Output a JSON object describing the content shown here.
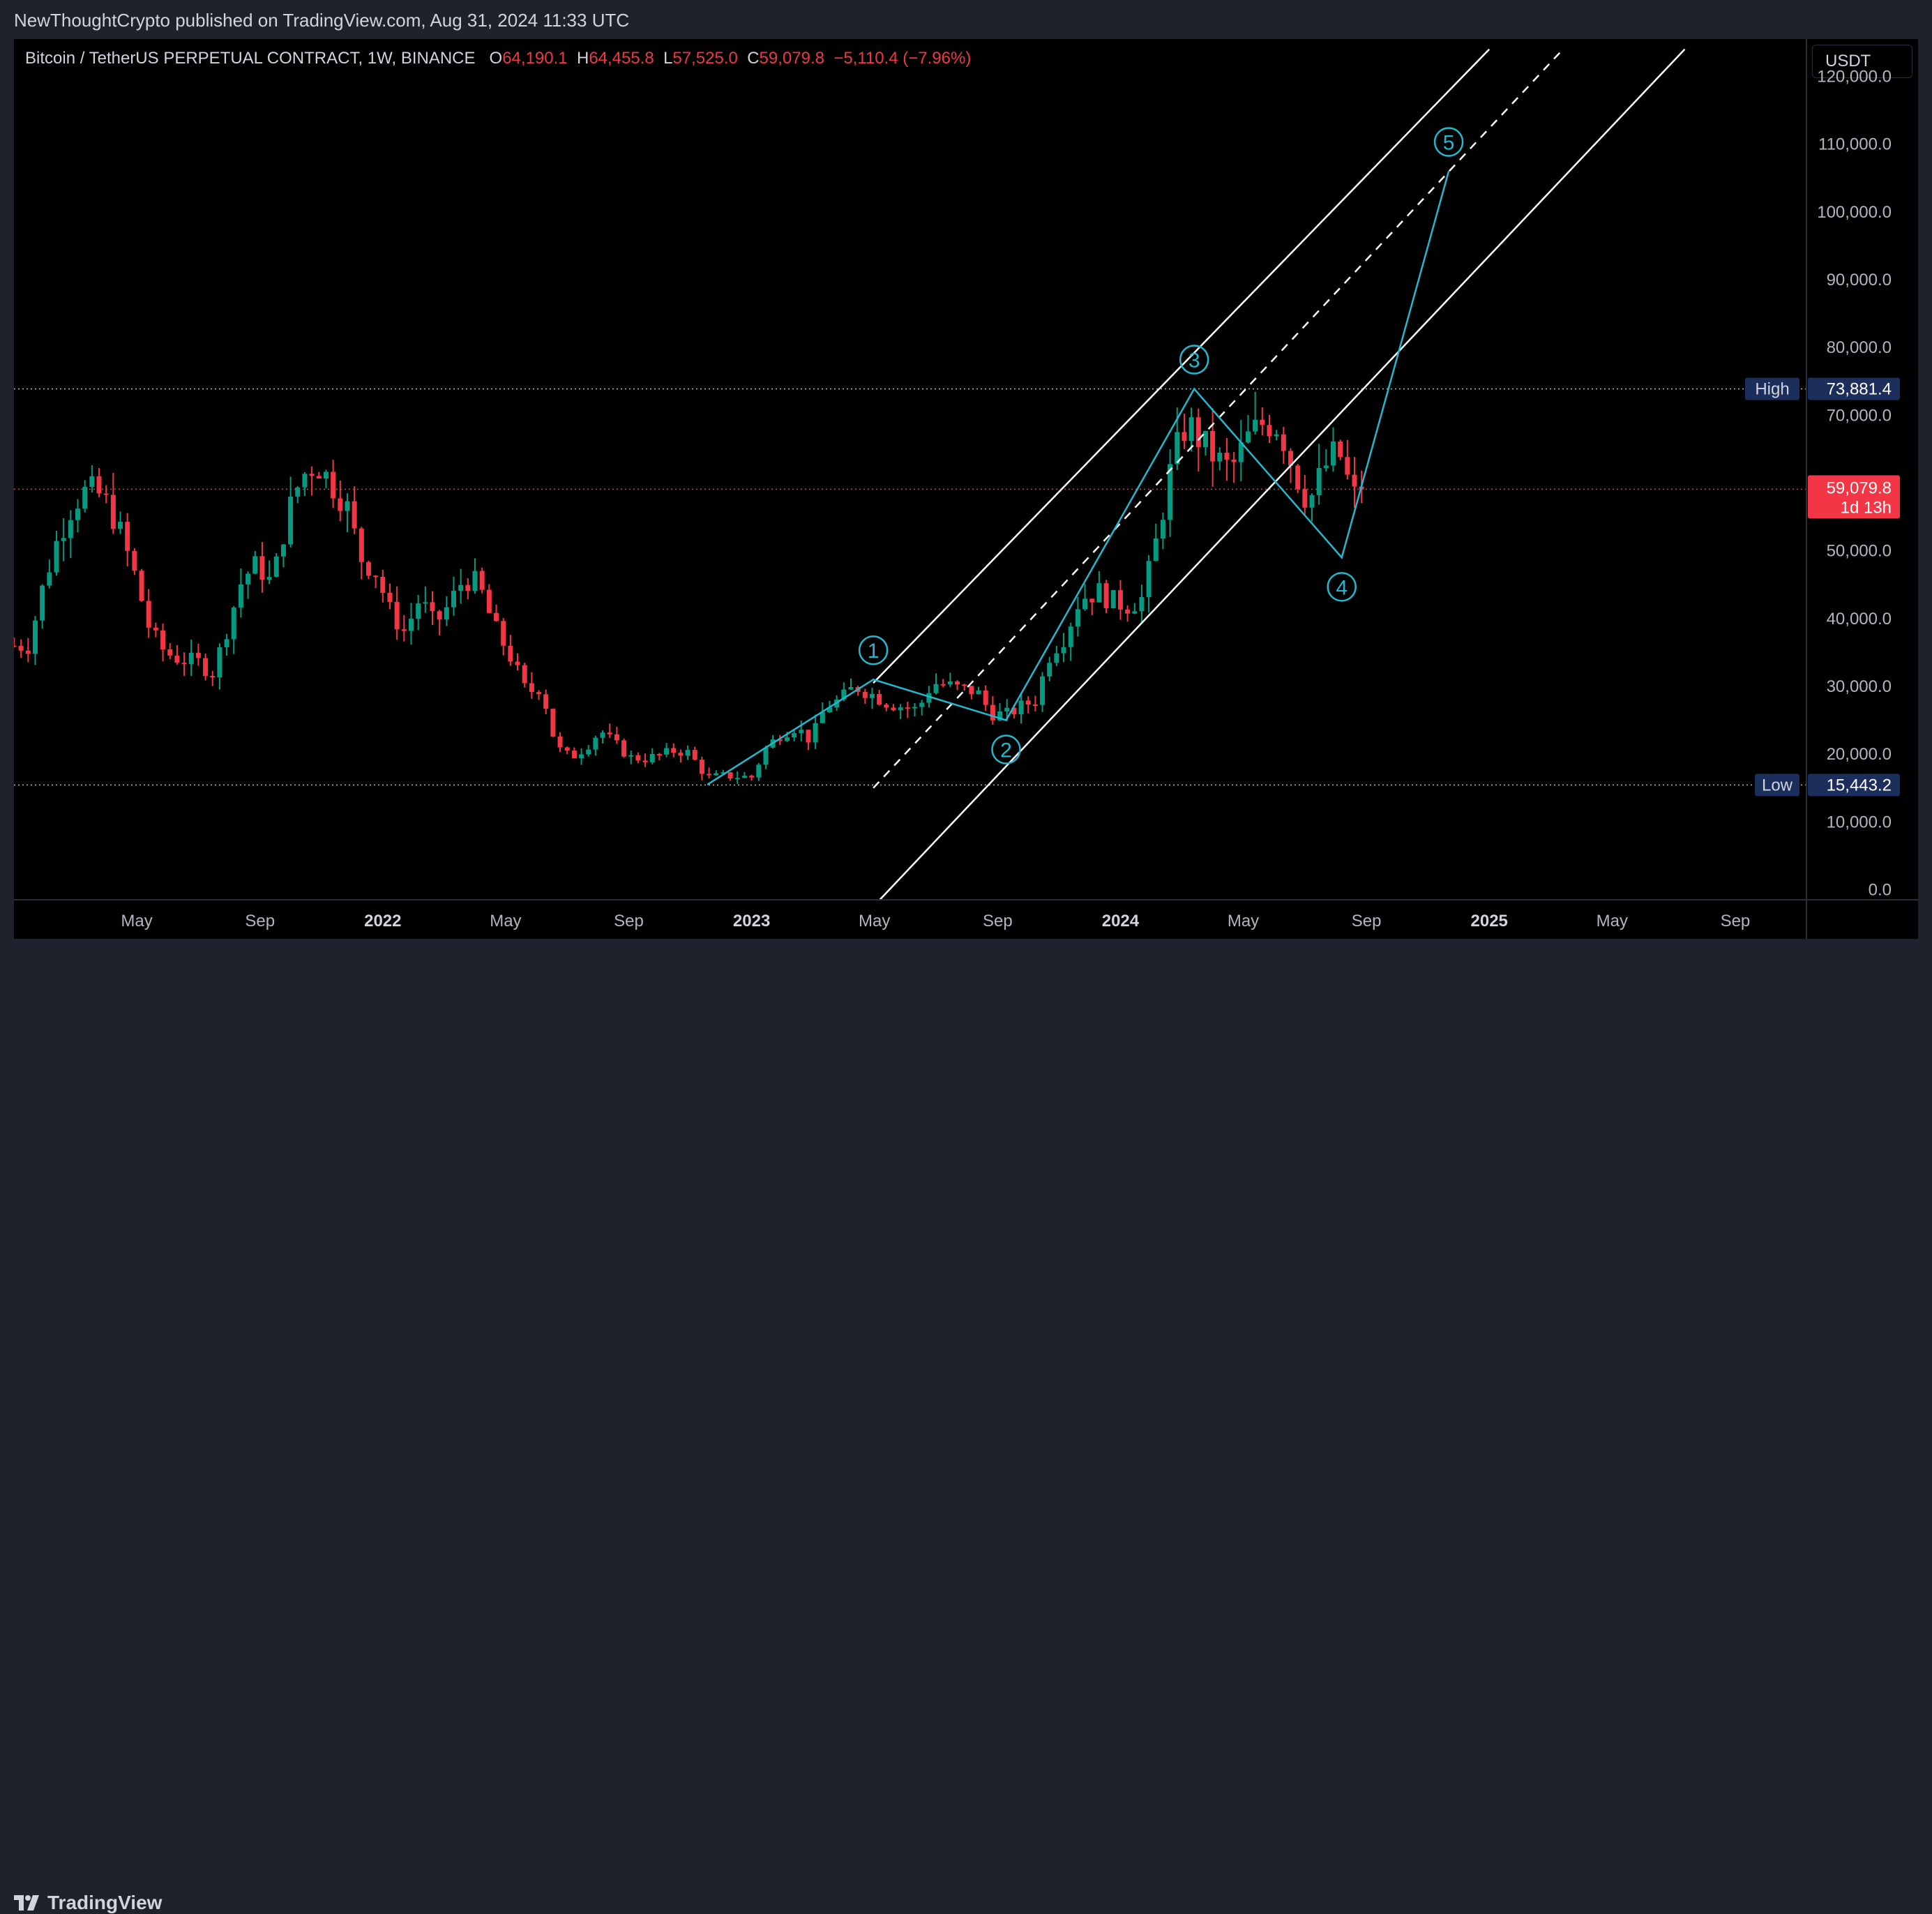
{
  "publish_line": "NewThoughtCrypto published on TradingView.com, Aug 31, 2024 11:33 UTC",
  "legend": {
    "symbol": "Bitcoin / TetherUS PERPETUAL CONTRACT, 1W, BINANCE",
    "o_key": "O",
    "o": "64,190.1",
    "h_key": "H",
    "h": "64,455.8",
    "l_key": "L",
    "l": "57,525.0",
    "c_key": "C",
    "c": "59,079.8",
    "change": "−5,110.4 (−7.96%)"
  },
  "currency": "USDT",
  "brand": "TradingView",
  "colors": {
    "up": "#089981",
    "down": "#f23645",
    "wave": "#22b8cf",
    "channel": "#ffffff",
    "badge": "#1c2e5c"
  },
  "markers": {
    "high": {
      "label": "High",
      "value": "73,881.4",
      "price": 73881.4
    },
    "low": {
      "label": "Low",
      "value": "15,443.2",
      "price": 15443.2
    },
    "last": {
      "value": "59,079.8",
      "countdown": "1d 13h",
      "price": 59079.8
    }
  },
  "chart_data": {
    "type": "candlestick",
    "timeframe": "1W",
    "y_axis": {
      "ticks": [
        "0.0",
        "10,000.0",
        "20,000.0",
        "30,000.0",
        "40,000.0",
        "50,000.0",
        "60,000.0",
        "70,000.0",
        "80,000.0",
        "90,000.0",
        "100,000.0",
        "110,000.0",
        "120,000.0"
      ],
      "range": [
        -1500,
        125500
      ]
    },
    "x_axis": {
      "ticks": [
        {
          "label": "May",
          "t": 2021.333,
          "year": false
        },
        {
          "label": "Sep",
          "t": 2021.667,
          "year": false
        },
        {
          "label": "2022",
          "t": 2022.0,
          "year": true
        },
        {
          "label": "May",
          "t": 2022.333,
          "year": false
        },
        {
          "label": "Sep",
          "t": 2022.667,
          "year": false
        },
        {
          "label": "2023",
          "t": 2023.0,
          "year": true
        },
        {
          "label": "May",
          "t": 2023.333,
          "year": false
        },
        {
          "label": "Sep",
          "t": 2023.667,
          "year": false
        },
        {
          "label": "2024",
          "t": 2024.0,
          "year": true
        },
        {
          "label": "May",
          "t": 2024.333,
          "year": false
        },
        {
          "label": "Sep",
          "t": 2024.667,
          "year": false
        },
        {
          "label": "2025",
          "t": 2025.0,
          "year": true
        },
        {
          "label": "May",
          "t": 2025.333,
          "year": false
        },
        {
          "label": "Sep",
          "t": 2025.667,
          "year": false
        }
      ]
    },
    "price_path": [
      [
        2021.04,
        36000
      ],
      [
        2021.08,
        45000
      ],
      [
        2021.12,
        52000
      ],
      [
        2021.16,
        57000
      ],
      [
        2021.2,
        59000
      ],
      [
        2021.24,
        58000
      ],
      [
        2021.28,
        54000
      ],
      [
        2021.33,
        46000
      ],
      [
        2021.37,
        38000
      ],
      [
        2021.41,
        35000
      ],
      [
        2021.45,
        34000
      ],
      [
        2021.5,
        33500
      ],
      [
        2021.54,
        32000
      ],
      [
        2021.58,
        39000
      ],
      [
        2021.62,
        46000
      ],
      [
        2021.66,
        48000
      ],
      [
        2021.7,
        45000
      ],
      [
        2021.74,
        55000
      ],
      [
        2021.78,
        61000
      ],
      [
        2021.82,
        63000
      ],
      [
        2021.86,
        60000
      ],
      [
        2021.9,
        57000
      ],
      [
        2021.94,
        49000
      ],
      [
        2021.98,
        47000
      ],
      [
        2022.02,
        41000
      ],
      [
        2022.06,
        38000
      ],
      [
        2022.1,
        43000
      ],
      [
        2022.14,
        39000
      ],
      [
        2022.18,
        42000
      ],
      [
        2022.22,
        46000
      ],
      [
        2022.26,
        45000
      ],
      [
        2022.3,
        39000
      ],
      [
        2022.35,
        34000
      ],
      [
        2022.39,
        29000
      ],
      [
        2022.43,
        30000
      ],
      [
        2022.47,
        21000
      ],
      [
        2022.51,
        19500
      ],
      [
        2022.55,
        21000
      ],
      [
        2022.59,
        23500
      ],
      [
        2022.63,
        21500
      ],
      [
        2022.67,
        19500
      ],
      [
        2022.71,
        19300
      ],
      [
        2022.75,
        19800
      ],
      [
        2022.79,
        20500
      ],
      [
        2022.83,
        20200
      ],
      [
        2022.88,
        16500
      ],
      [
        2022.92,
        16800
      ],
      [
        2022.96,
        16700
      ],
      [
        2023.0,
        16600
      ],
      [
        2023.04,
        21000
      ],
      [
        2023.08,
        23000
      ],
      [
        2023.12,
        24000
      ],
      [
        2023.16,
        22000
      ],
      [
        2023.2,
        27000
      ],
      [
        2023.24,
        28000
      ],
      [
        2023.28,
        30000
      ],
      [
        2023.32,
        29000
      ],
      [
        2023.37,
        27500
      ],
      [
        2023.41,
        27000
      ],
      [
        2023.45,
        26500
      ],
      [
        2023.49,
        30500
      ],
      [
        2023.53,
        30200
      ],
      [
        2023.57,
        29500
      ],
      [
        2023.61,
        29300
      ],
      [
        2023.65,
        26000
      ],
      [
        2023.69,
        25800
      ],
      [
        2023.73,
        27000
      ],
      [
        2023.77,
        28000
      ],
      [
        2023.81,
        35000
      ],
      [
        2023.85,
        37500
      ],
      [
        2023.89,
        43000
      ],
      [
        2023.94,
        44000
      ],
      [
        2023.98,
        42500
      ],
      [
        2024.02,
        42000
      ],
      [
        2024.06,
        43000
      ],
      [
        2024.1,
        52000
      ],
      [
        2024.14,
        63000
      ],
      [
        2024.18,
        69000
      ],
      [
        2024.22,
        66000
      ],
      [
        2024.26,
        63500
      ],
      [
        2024.3,
        62000
      ],
      [
        2024.35,
        67000
      ],
      [
        2024.39,
        69000
      ],
      [
        2024.43,
        68500
      ],
      [
        2024.47,
        62000
      ],
      [
        2024.51,
        57000
      ],
      [
        2024.55,
        62000
      ],
      [
        2024.59,
        65000
      ],
      [
        2024.63,
        58000
      ],
      [
        2024.67,
        59080
      ]
    ],
    "channel": {
      "upper": [
        [
          2023.33,
          30500
        ],
        [
          2024.2,
          73881
        ],
        [
          2025.0,
          124000
        ]
      ],
      "middle": [
        [
          2023.33,
          15000
        ],
        [
          2025.2,
          124000
        ]
      ],
      "lower": [
        [
          2023.33,
          -2500
        ],
        [
          2025.53,
          124000
        ]
      ]
    },
    "waves": [
      {
        "label": "1",
        "t": 2023.33,
        "price": 31000
      },
      {
        "label": "2",
        "t": 2023.69,
        "price": 25000
      },
      {
        "label": "3",
        "t": 2024.2,
        "price": 73881
      },
      {
        "label": "4",
        "t": 2024.6,
        "price": 49000
      },
      {
        "label": "5",
        "t": 2024.89,
        "price": 106000
      }
    ]
  }
}
